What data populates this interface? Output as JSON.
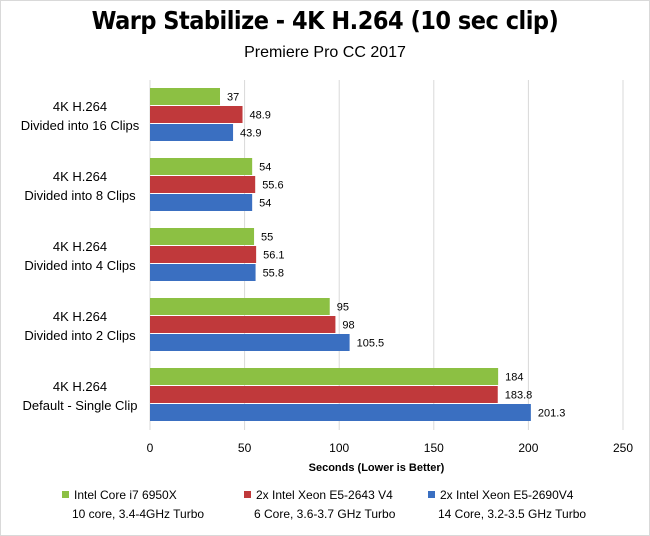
{
  "chart_data": {
    "type": "bar",
    "orientation": "horizontal",
    "title": "Warp Stabilize - 4K H.264 (10 sec clip)",
    "subtitle": "Premiere Pro CC 2017",
    "xlabel": "Seconds  (Lower is Better)",
    "xlim": [
      0,
      250
    ],
    "xticks": [
      0,
      50,
      100,
      150,
      200,
      250
    ],
    "grid": true,
    "categories": [
      [
        "4K H.264",
        "Divided into 16 Clips"
      ],
      [
        "4K H.264",
        "Divided into 8 Clips"
      ],
      [
        "4K H.264",
        "Divided into 4 Clips"
      ],
      [
        "4K H.264",
        "Divided into 2 Clips"
      ],
      [
        "4K H.264",
        "Default - Single Clip"
      ]
    ],
    "series": [
      {
        "name": "Intel Core i7 6950X",
        "detail": "10 core, 3.4-4GHz Turbo",
        "color": "#8cc043",
        "values": [
          37,
          54,
          55,
          95,
          184
        ],
        "labels": [
          "37",
          "54",
          "55",
          "95",
          "184"
        ]
      },
      {
        "name": "2x Intel Xeon E5-2643 V4",
        "detail": "6 Core, 3.6-3.7 GHz Turbo",
        "color": "#c0393b",
        "values": [
          48.9,
          55.6,
          56.1,
          98,
          183.8
        ],
        "labels": [
          "48.9",
          "55.6",
          "56.1",
          "98",
          "183.8"
        ]
      },
      {
        "name": "2x Intel Xeon E5-2690V4",
        "detail": "14 Core, 3.2-3.5 GHz Turbo",
        "color": "#3a6fc1",
        "values": [
          43.9,
          54,
          55.8,
          105.5,
          201.3
        ],
        "labels": [
          "43.9",
          "54",
          "55.8",
          "105.5",
          "201.3"
        ]
      }
    ],
    "legend_position": "bottom"
  }
}
